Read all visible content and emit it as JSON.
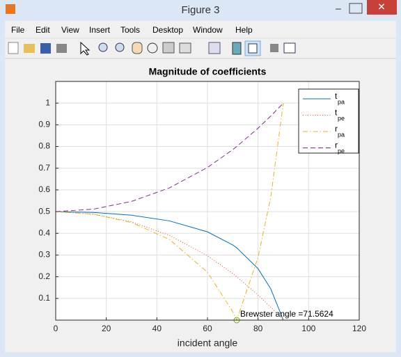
{
  "window": {
    "title": "Figure 3",
    "menu": [
      "File",
      "Edit",
      "View",
      "Insert",
      "Tools",
      "Desktop",
      "Window",
      "Help"
    ]
  },
  "chart_data": {
    "type": "line",
    "title": "Magnitude of coefficients",
    "x_label": "incident angle",
    "x": [
      0,
      15,
      30,
      45,
      60,
      70,
      71.5624,
      80,
      85,
      90
    ],
    "series": [
      {
        "name": "t",
        "subscript": "pa",
        "color": "#0072bd",
        "style": "solid",
        "values": [
          0.5,
          0.4961,
          0.4833,
          0.4572,
          0.4069,
          0.3462,
          0.3333,
          0.237,
          0.1447,
          0
        ]
      },
      {
        "name": "t",
        "subscript": "pe",
        "color": "#d95319",
        "style": "dotted",
        "values": [
          0.5,
          0.4885,
          0.4529,
          0.3904,
          0.2965,
          0.2144,
          0.2,
          0.1155,
          0.0598,
          0
        ]
      },
      {
        "name": "r",
        "subscript": "pa",
        "color": "#edb120",
        "style": "dashdot",
        "values": [
          0.5,
          0.4883,
          0.4498,
          0.3716,
          0.2208,
          0.0387,
          0,
          0.2891,
          0.5659,
          1
        ]
      },
      {
        "name": "r",
        "subscript": "pe",
        "color": "#7e2f8e",
        "style": "dashed",
        "values": [
          0.5,
          0.5115,
          0.5471,
          0.6096,
          0.7035,
          0.7856,
          0.8,
          0.8845,
          0.9402,
          1
        ]
      }
    ],
    "xlim": [
      0,
      120
    ],
    "xticks": [
      0,
      20,
      40,
      60,
      80,
      100,
      120
    ],
    "ylim": [
      0,
      1.1
    ],
    "yticks": [
      0.1,
      0.2,
      0.3,
      0.4,
      0.5,
      0.6,
      0.7,
      0.8,
      0.9,
      1
    ],
    "grid": true,
    "legend": "upper right",
    "annotation": {
      "text": "Brewster angle =71.5624",
      "x": 71.5624,
      "y": 0,
      "color": "#77ac30"
    }
  }
}
